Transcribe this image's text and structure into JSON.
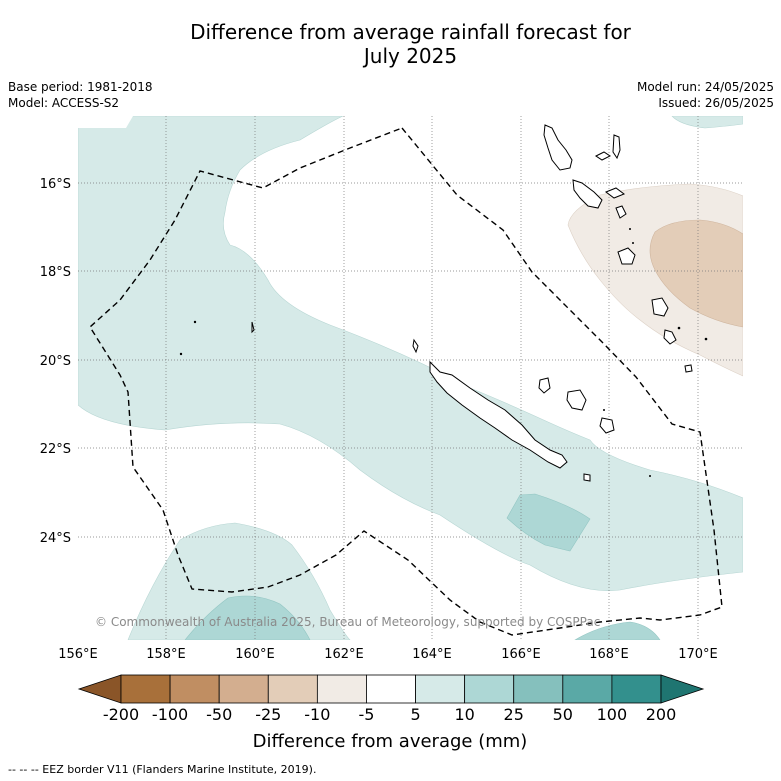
{
  "title_line1": "Difference from average rainfall forecast for",
  "title_line2": "July 2025",
  "base_period": "Base period: 1981-2018",
  "model": "Model: ACCESS-S2",
  "model_run": "Model run: 24/05/2025",
  "issued": "Issued: 26/05/2025",
  "lat_ticks": [
    "16°S",
    "18°S",
    "20°S",
    "22°S",
    "24°S"
  ],
  "lon_ticks": [
    "156°E",
    "158°E",
    "160°E",
    "162°E",
    "164°E",
    "166°E",
    "168°E",
    "170°E"
  ],
  "copyright": "© Commonwealth of Australia 2025, Bureau of Meteorology, supported by COSPPac",
  "colorbar": {
    "labels": [
      "-200",
      "-100",
      "-50",
      "-25",
      "-10",
      "-5",
      "5",
      "10",
      "25",
      "50",
      "100",
      "200"
    ],
    "colors": [
      "#a8703a",
      "#c08e62",
      "#d3ae8f",
      "#e3cdb8",
      "#f1ebe5",
      "#ffffff",
      "#d6eae8",
      "#add7d5",
      "#85c0bd",
      "#5aa9a6",
      "#33908d"
    ],
    "low_extend_color": "#8a5528",
    "high_extend_color": "#1f7571",
    "title": "Difference from average (mm)"
  },
  "footnote": "--  --  -- EEZ border V11 (Flanders Marine Institute, 2019)."
}
